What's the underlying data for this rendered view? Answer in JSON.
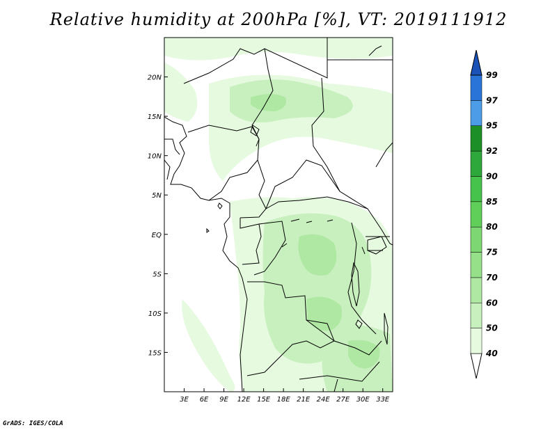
{
  "title": "Relative humidity at 200hPa [%], VT: 2019111912",
  "credit": "GrADS: IGES/COLA",
  "map": {
    "lon_range": [
      0,
      34.5
    ],
    "lat_range": [
      -20,
      25
    ],
    "lon_ticks": [
      {
        "value": 3,
        "label": "3E"
      },
      {
        "value": 6,
        "label": "6E"
      },
      {
        "value": 9,
        "label": "9E"
      },
      {
        "value": 12,
        "label": "12E"
      },
      {
        "value": 15,
        "label": "15E"
      },
      {
        "value": 18,
        "label": "18E"
      },
      {
        "value": 21,
        "label": "21E"
      },
      {
        "value": 24,
        "label": "24E"
      },
      {
        "value": 27,
        "label": "27E"
      },
      {
        "value": 30,
        "label": "30E"
      },
      {
        "value": 33,
        "label": "33E"
      }
    ],
    "lat_ticks": [
      {
        "value": 20,
        "label": "20N"
      },
      {
        "value": 15,
        "label": "15N"
      },
      {
        "value": 10,
        "label": "10N"
      },
      {
        "value": 5,
        "label": "5N"
      },
      {
        "value": 0,
        "label": "EQ"
      },
      {
        "value": -5,
        "label": "5S"
      },
      {
        "value": -10,
        "label": "10S"
      },
      {
        "value": -15,
        "label": "15S"
      }
    ],
    "field_colors": {
      "light": "#e6fae0",
      "medium": "#c8f0be",
      "strong": "#aee8a2"
    }
  },
  "colorbar": {
    "levels": [
      "40",
      "50",
      "60",
      "70",
      "75",
      "80",
      "85",
      "90",
      "92",
      "95",
      "97",
      "99"
    ],
    "colors": [
      "#e6fae0",
      "#c8f0be",
      "#aee8a2",
      "#96e08a",
      "#7dd873",
      "#5fcf5a",
      "#46c34a",
      "#2ea83a",
      "#1d8f27",
      "#4d9ce8",
      "#2a74d8",
      "#1a52b8"
    ],
    "below_color": "#ffffff",
    "above_color": "#1a52b8"
  }
}
